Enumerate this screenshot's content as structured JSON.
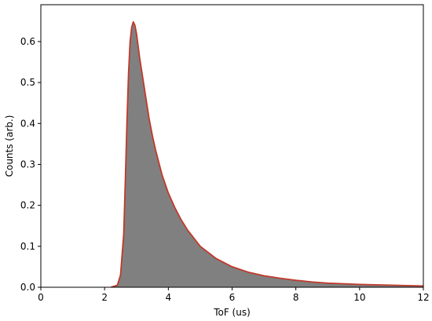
{
  "chart_data": {
    "type": "area",
    "xlabel": "ToF (us)",
    "ylabel": "Counts (arb.)",
    "xlim": [
      0,
      12
    ],
    "ylim": [
      0,
      0.69
    ],
    "x_ticks": [
      0,
      2,
      4,
      6,
      8,
      10,
      12
    ],
    "x_tick_labels": [
      "0",
      "2",
      "4",
      "6",
      "8",
      "10",
      "12"
    ],
    "y_ticks": [
      0.0,
      0.1,
      0.2,
      0.3,
      0.4,
      0.5,
      0.6
    ],
    "y_tick_labels": [
      "0.0",
      "0.1",
      "0.2",
      "0.3",
      "0.4",
      "0.5",
      "0.6"
    ],
    "grid": false,
    "legend": false,
    "series": [
      {
        "kind": "histogram",
        "color": "#808080",
        "x": [
          2.2,
          2.4,
          2.5,
          2.6,
          2.65,
          2.7,
          2.75,
          2.8,
          2.85,
          2.9,
          2.95,
          3.0,
          3.05,
          3.1,
          3.2,
          3.3,
          3.4,
          3.5,
          3.6,
          3.8,
          4.0,
          4.2,
          4.4,
          4.6,
          4.8,
          5.0,
          5.5,
          6.0,
          6.5,
          7.0,
          7.5,
          8.0,
          8.5,
          9.0,
          10.0,
          11.0,
          12.0
        ],
        "y": [
          0.0,
          0.005,
          0.03,
          0.13,
          0.26,
          0.4,
          0.52,
          0.6,
          0.635,
          0.648,
          0.64,
          0.62,
          0.59,
          0.56,
          0.51,
          0.46,
          0.41,
          0.37,
          0.335,
          0.275,
          0.23,
          0.195,
          0.165,
          0.14,
          0.12,
          0.1,
          0.07,
          0.05,
          0.037,
          0.028,
          0.022,
          0.017,
          0.013,
          0.01,
          0.007,
          0.005,
          0.003
        ]
      },
      {
        "kind": "fit-line",
        "color": "#c0392b",
        "x": [
          2.2,
          2.4,
          2.5,
          2.6,
          2.65,
          2.7,
          2.75,
          2.8,
          2.85,
          2.9,
          2.95,
          3.0,
          3.05,
          3.1,
          3.2,
          3.3,
          3.4,
          3.5,
          3.6,
          3.8,
          4.0,
          4.2,
          4.4,
          4.6,
          4.8,
          5.0,
          5.5,
          6.0,
          6.5,
          7.0,
          7.5,
          8.0,
          8.5,
          9.0,
          10.0,
          11.0,
          12.0
        ],
        "y": [
          0.0,
          0.005,
          0.03,
          0.13,
          0.26,
          0.4,
          0.52,
          0.6,
          0.635,
          0.648,
          0.64,
          0.62,
          0.59,
          0.56,
          0.51,
          0.46,
          0.41,
          0.37,
          0.335,
          0.275,
          0.23,
          0.195,
          0.165,
          0.14,
          0.12,
          0.1,
          0.07,
          0.05,
          0.037,
          0.028,
          0.022,
          0.017,
          0.013,
          0.01,
          0.007,
          0.005,
          0.003
        ]
      }
    ]
  }
}
